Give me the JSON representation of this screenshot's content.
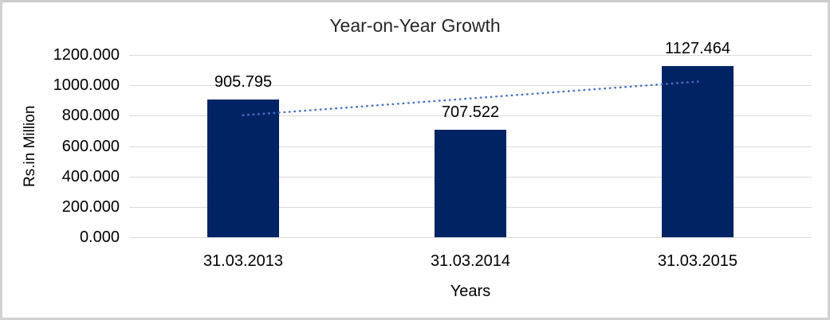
{
  "chart_data": {
    "type": "bar",
    "title": "Year-on-Year Growth",
    "categories": [
      "31.03.2013",
      "31.03.2014",
      "31.03.2015"
    ],
    "values": [
      905.795,
      707.522,
      1127.464
    ],
    "value_labels": [
      "905.795",
      "707.522",
      "1127.464"
    ],
    "xlabel": "Years",
    "ylabel": "Rs.in Million",
    "ylim": [
      0,
      1200
    ],
    "ytick_step": 200,
    "ytick_labels": [
      "0.000",
      "200.000",
      "400.000",
      "600.000",
      "800.000",
      "1000.000",
      "1200.000"
    ],
    "grid": true,
    "legend": "none",
    "colors": {
      "bar": "#002364",
      "trendline": "#4573c5",
      "gridline": "#d9d9d9",
      "text": "#000000"
    },
    "trendline": {
      "type": "linear",
      "style": "dotted"
    }
  }
}
